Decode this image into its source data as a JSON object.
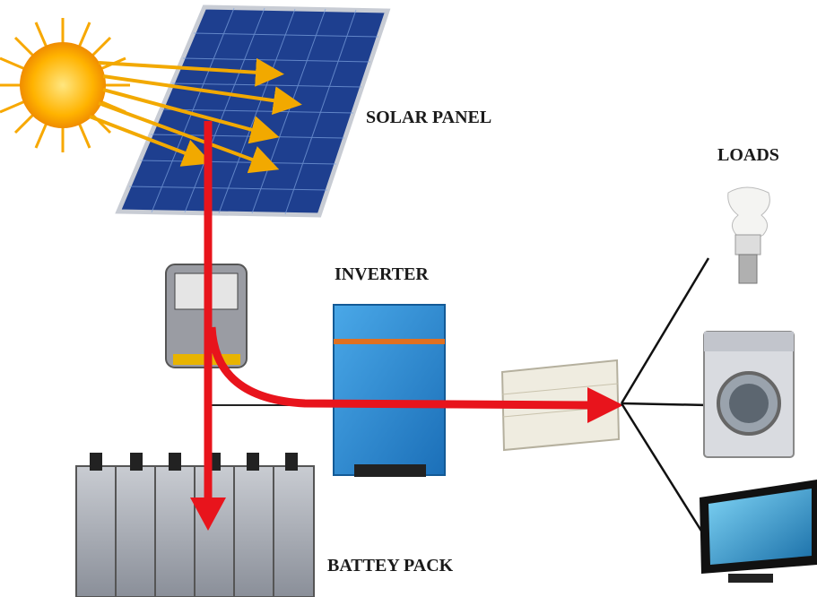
{
  "nodes": [
    {
      "label": "SOLAR PANEL"
    },
    {
      "label": "LOADS"
    },
    {
      "label": "INVERTER"
    },
    {
      "label": "BATTEY PACK"
    }
  ]
}
